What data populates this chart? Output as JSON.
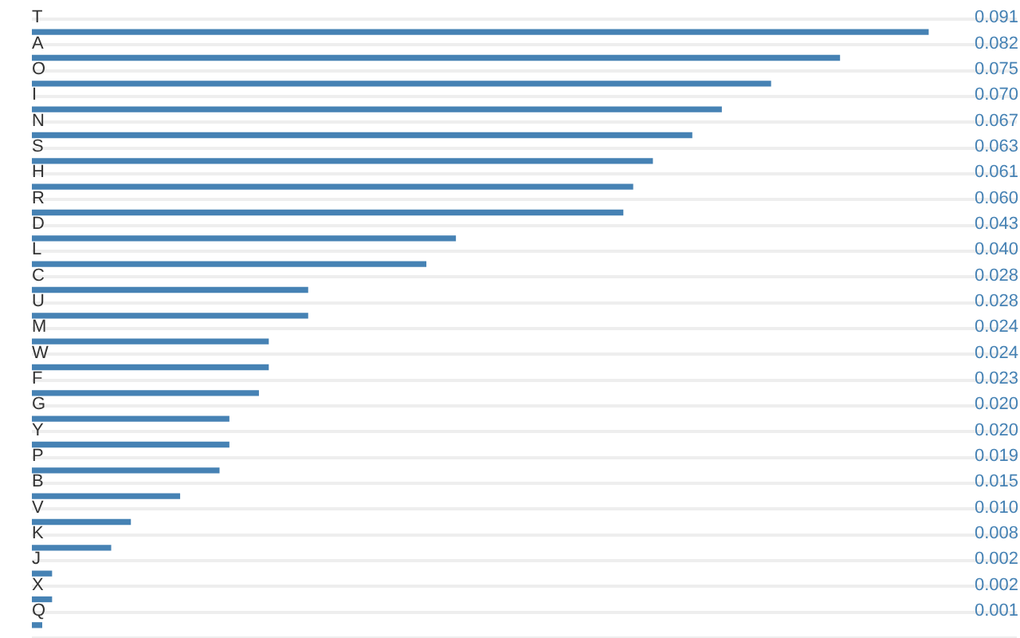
{
  "chart_data": {
    "type": "bar",
    "orientation": "horizontal",
    "categories": [
      "T",
      "A",
      "O",
      "I",
      "N",
      "S",
      "H",
      "R",
      "D",
      "L",
      "C",
      "U",
      "M",
      "W",
      "F",
      "G",
      "Y",
      "P",
      "B",
      "V",
      "K",
      "J",
      "X",
      "Q"
    ],
    "values": [
      0.091,
      0.082,
      0.075,
      0.07,
      0.067,
      0.063,
      0.061,
      0.06,
      0.043,
      0.04,
      0.028,
      0.028,
      0.024,
      0.024,
      0.023,
      0.02,
      0.02,
      0.019,
      0.015,
      0.01,
      0.008,
      0.002,
      0.002,
      0.001
    ],
    "value_labels": [
      "0.091",
      "0.082",
      "0.075",
      "0.070",
      "0.067",
      "0.063",
      "0.061",
      "0.060",
      "0.043",
      "0.040",
      "0.028",
      "0.028",
      "0.024",
      "0.024",
      "0.023",
      "0.020",
      "0.020",
      "0.019",
      "0.015",
      "0.010",
      "0.008",
      "0.002",
      "0.002",
      "0.001"
    ],
    "color": "#4682b4",
    "grid": "y",
    "tick_labels": "y"
  }
}
